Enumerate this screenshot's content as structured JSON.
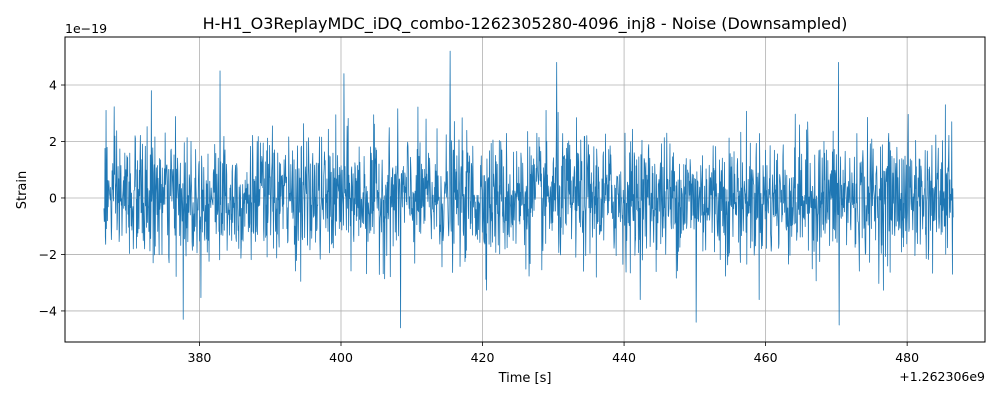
{
  "chart_data": {
    "type": "line",
    "title": "H-H1_O3ReplayMDC_iDQ_combo-1262305280-4096_inj8 - Noise (Downsampled)",
    "xlabel": "Time [s]",
    "ylabel": "Strain",
    "x_offset_label": "+1.262306e9",
    "y_scale_label": "1e−19",
    "xlim": [
      361,
      491
    ],
    "ylim": [
      -5.1,
      5.7
    ],
    "grid": true,
    "legend": "none",
    "line_color": "#1f77b4",
    "x_ticks": [
      {
        "value": 380,
        "label": "380"
      },
      {
        "value": 400,
        "label": "400"
      },
      {
        "value": 420,
        "label": "420"
      },
      {
        "value": 440,
        "label": "440"
      },
      {
        "value": 460,
        "label": "460"
      },
      {
        "value": 480,
        "label": "480"
      }
    ],
    "y_ticks": [
      {
        "value": -4,
        "label": "−4"
      },
      {
        "value": -2,
        "label": "−2"
      },
      {
        "value": 0,
        "label": "0"
      },
      {
        "value": 2,
        "label": "2"
      },
      {
        "value": 4,
        "label": "4"
      }
    ],
    "series": [
      {
        "x_start": 366.5,
        "x_end": 486.5,
        "n_points": 2400,
        "typical_amplitude": [
          -1.7,
          1.8
        ],
        "peaks": [
          {
            "x": 366.8,
            "y": 3.1
          },
          {
            "x": 373.2,
            "y": 3.8
          },
          {
            "x": 377.7,
            "y": -4.3
          },
          {
            "x": 382.9,
            "y": 4.5
          },
          {
            "x": 400.4,
            "y": 4.4
          },
          {
            "x": 408.4,
            "y": -4.6
          },
          {
            "x": 415.4,
            "y": 5.2
          },
          {
            "x": 430.5,
            "y": 4.8
          },
          {
            "x": 450.2,
            "y": -4.4
          },
          {
            "x": 470.3,
            "y": 4.8
          },
          {
            "x": 470.4,
            "y": -4.5
          },
          {
            "x": 485.4,
            "y": 3.3
          },
          {
            "x": 486.4,
            "y": -2.7
          }
        ]
      }
    ]
  }
}
